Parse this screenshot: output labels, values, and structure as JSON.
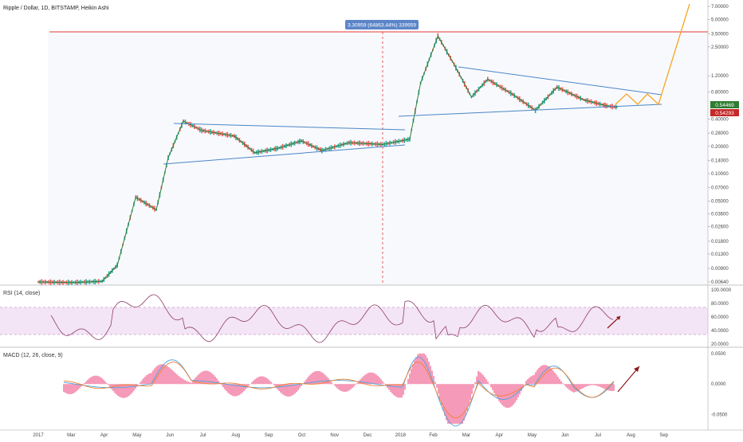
{
  "title": "Ripple / Dollar, 1D, BITSTAMP, Heikin Ashi",
  "crosshair_tooltip": "3.30959 (64863.44%) 339959",
  "price_axis": {
    "ticks": [
      "7.00000",
      "5.00000",
      "3.50000",
      "2.50000",
      "1.20000",
      "0.80000",
      "0.40000",
      "0.28000",
      "0.20000",
      "0.14000",
      "0.10000",
      "0.07000",
      "0.05000",
      "0.03600",
      "0.02600",
      "0.01800",
      "0.01300",
      "0.00900",
      "0.00640"
    ],
    "badges": [
      {
        "text": "0.54469",
        "color": "#2e7d32"
      },
      {
        "text": "0.54293",
        "color": "#c62828"
      }
    ]
  },
  "time_axis": [
    "2017",
    "Mar",
    "Apr",
    "May",
    "Jun",
    "Jul",
    "Aug",
    "Sep",
    "Oct",
    "Nov",
    "Dec",
    "2018",
    "Feb",
    "Mar",
    "Apr",
    "May",
    "Jun",
    "Jul",
    "Aug",
    "Sep"
  ],
  "rsi": {
    "label": "RSI (14, close)",
    "ticks": [
      "100.0000",
      "80.0000",
      "60.0000",
      "40.0000",
      "20.0000"
    ]
  },
  "macd": {
    "label": "MACD (12, 26, close, 9)",
    "ticks": [
      "0.0500",
      "0.0000",
      "-0.0500"
    ]
  },
  "colors": {
    "up": "#26a69a",
    "down": "#ef5350",
    "trend": "#4a86c5",
    "projection": "#f5a623",
    "resistance": "#e53935",
    "rsi_band": "#f3e5f5",
    "hist": "#f48fb1",
    "arrow": "#8b1a1a"
  },
  "chart_data": {
    "type": "line",
    "price_log_scale": true,
    "price_series": [
      {
        "d": "2017-01-01",
        "v": 0.0064
      },
      {
        "d": "2017-02-01",
        "v": 0.0063
      },
      {
        "d": "2017-03-01",
        "v": 0.0065
      },
      {
        "d": "2017-03-15",
        "v": 0.0098
      },
      {
        "d": "2017-04-01",
        "v": 0.055
      },
      {
        "d": "2017-04-20",
        "v": 0.04
      },
      {
        "d": "2017-05-01",
        "v": 0.15
      },
      {
        "d": "2017-05-15",
        "v": 0.38
      },
      {
        "d": "2017-06-01",
        "v": 0.3
      },
      {
        "d": "2017-07-01",
        "v": 0.26
      },
      {
        "d": "2017-07-20",
        "v": 0.17
      },
      {
        "d": "2017-08-10",
        "v": 0.19
      },
      {
        "d": "2017-09-01",
        "v": 0.23
      },
      {
        "d": "2017-09-20",
        "v": 0.18
      },
      {
        "d": "2017-10-15",
        "v": 0.22
      },
      {
        "d": "2017-11-15",
        "v": 0.21
      },
      {
        "d": "2017-12-10",
        "v": 0.24
      },
      {
        "d": "2017-12-20",
        "v": 1.0
      },
      {
        "d": "2018-01-05",
        "v": 3.3
      },
      {
        "d": "2018-01-20",
        "v": 1.6
      },
      {
        "d": "2018-02-05",
        "v": 0.7
      },
      {
        "d": "2018-02-20",
        "v": 1.1
      },
      {
        "d": "2018-03-15",
        "v": 0.75
      },
      {
        "d": "2018-04-05",
        "v": 0.5
      },
      {
        "d": "2018-04-25",
        "v": 0.9
      },
      {
        "d": "2018-05-20",
        "v": 0.65
      },
      {
        "d": "2018-06-10",
        "v": 0.56
      },
      {
        "d": "2018-06-20",
        "v": 0.54
      }
    ],
    "rsi_range": [
      20,
      100
    ],
    "macd_range": [
      -0.07,
      0.055
    ]
  }
}
